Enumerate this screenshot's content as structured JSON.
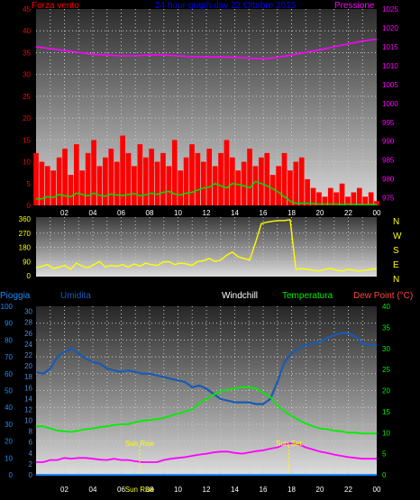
{
  "chart_data": [
    {
      "type": "line",
      "title": "24 hour graph day  22 Ottobre 2015",
      "left_label": "Forza vento",
      "right_label": "Pressione",
      "left_ticks": [
        "45",
        "40",
        "35",
        "30",
        "25",
        "20",
        "15",
        "10",
        "5",
        "0"
      ],
      "right_ticks": [
        "1025",
        "1020",
        "1015",
        "1010",
        "1005",
        "1000",
        "995",
        "990",
        "985",
        "980",
        "975"
      ],
      "x_ticks": [
        "02",
        "04",
        "06",
        "08",
        "10",
        "12",
        "14",
        "16",
        "18",
        "20",
        "22",
        "00"
      ],
      "ylim_left": [
        0,
        45
      ],
      "ylim_right": [
        973,
        1025
      ],
      "grid": true,
      "colors": {
        "wind": "#ff0000",
        "gust": "#00dd00",
        "pressure": "#ff00ff"
      },
      "series": [
        {
          "values": [
            12,
            10,
            9,
            8,
            11,
            13,
            7,
            14,
            8,
            12,
            15,
            9,
            11,
            13,
            10,
            16,
            12,
            9,
            14,
            11,
            13,
            10,
            12,
            9,
            15,
            8,
            11,
            14,
            12,
            10,
            13,
            9,
            12,
            15,
            11,
            8,
            10,
            13,
            9,
            11,
            12,
            7,
            9,
            12,
            8,
            10,
            11,
            6,
            4,
            3,
            2,
            4,
            3,
            5,
            2,
            3,
            4,
            2,
            3,
            1
          ]
        },
        {
          "values": [
            1.5,
            1.5,
            2,
            1.8,
            2.5,
            2.2,
            2,
            2.8,
            2.5,
            2.2,
            2.8,
            2.3,
            2.1,
            2.6,
            2.4,
            2.3,
            2.5,
            2.7,
            2.2,
            2.4,
            2.8,
            2.5,
            3,
            3.2,
            2.6,
            2.4,
            2.8,
            3,
            3.5,
            4,
            4.2,
            5,
            4.5,
            4,
            5,
            4.8,
            4.5,
            4,
            5.5,
            5,
            4.5,
            3.8,
            3,
            2,
            1,
            0.5,
            0.5,
            0.5,
            0.4,
            0.3,
            0.3,
            0.3,
            0.3,
            0.2,
            0.3,
            0.2,
            0.2,
            0.2,
            0.2,
            0.2
          ]
        },
        {
          "x": [
            0,
            1,
            2,
            3,
            4,
            5,
            6,
            7,
            8,
            9,
            10,
            11,
            12,
            13,
            14,
            15,
            16,
            17,
            18,
            19,
            20,
            21,
            22,
            23,
            24
          ],
          "values": [
            1015,
            1014.5,
            1014,
            1013.5,
            1013,
            1012.8,
            1012.6,
            1012.6,
            1012.8,
            1012.8,
            1012.6,
            1012.4,
            1012.3,
            1012.3,
            1012.2,
            1012,
            1011.8,
            1012.2,
            1012.8,
            1013.5,
            1014.2,
            1015,
            1015.8,
            1016.5,
            1017
          ]
        }
      ]
    },
    {
      "type": "line",
      "right_label": "N W S E N",
      "left_ticks": [
        "360",
        "270",
        "180",
        "90",
        "0"
      ],
      "ylim": [
        0,
        360
      ],
      "colors": {
        "direction": "#ffff00"
      },
      "series": [
        {
          "values": [
            50,
            60,
            70,
            45,
            55,
            65,
            40,
            80,
            60,
            50,
            70,
            90,
            55,
            65,
            60,
            70,
            55,
            75,
            60,
            80,
            70,
            65,
            85,
            90,
            70,
            80,
            75,
            65,
            90,
            95,
            110,
            90,
            100,
            130,
            150,
            120,
            110,
            100,
            210,
            330,
            340,
            345,
            350,
            350,
            355,
            40,
            45,
            40,
            35,
            30,
            40,
            45,
            35,
            30,
            40,
            35,
            30,
            35,
            40,
            45
          ]
        }
      ]
    },
    {
      "type": "line",
      "labels": [
        "Pioggia",
        "Umidita",
        "Windchill",
        "Temperatura",
        "Dew Point (°C)"
      ],
      "left_ticks": [
        "100",
        "90",
        "80",
        "70",
        "60",
        "50",
        "40",
        "30",
        "20",
        "10",
        "0"
      ],
      "mid_ticks": [
        "30",
        "28",
        "26",
        "24",
        "22",
        "20",
        "18",
        "16",
        "14",
        "12",
        "10",
        "8",
        "6",
        "4",
        "2",
        "0"
      ],
      "right_ticks": [
        "40",
        "35",
        "30",
        "25",
        "20",
        "15",
        "10",
        "5",
        "0"
      ],
      "x_ticks": [
        "02",
        "04",
        "06",
        "08",
        "10",
        "12",
        "14",
        "16",
        "18",
        "20",
        "22",
        "00"
      ],
      "ylim_left": [
        0,
        100
      ],
      "ylim_right": [
        0,
        40
      ],
      "grid": true,
      "colors": {
        "humidity": "#1a5ab4",
        "temperature": "#00ee00",
        "dewpoint": "#ff00ff",
        "rain": "#1a8cff"
      },
      "annotations": [
        {
          "label": "Sun Rise",
          "x": 7.3
        },
        {
          "label": "Sun Set",
          "x": 17.8
        },
        {
          "label": "Sun Rise",
          "x": 7.3
        }
      ],
      "series": [
        {
          "x": [
            0,
            0.5,
            1,
            1.5,
            2,
            2.5,
            3,
            3.5,
            4,
            4.5,
            5,
            5.5,
            6,
            6.5,
            7,
            7.5,
            8,
            8.5,
            9,
            9.5,
            10,
            10.5,
            11,
            11.5,
            12,
            12.5,
            13,
            13.5,
            14,
            14.5,
            15,
            15.5,
            16,
            16.5,
            17,
            17.5,
            18,
            18.5,
            19,
            19.5,
            20,
            20.5,
            21,
            21.5,
            22,
            22.5,
            23,
            23.5,
            24
          ],
          "values": [
            61,
            60,
            63,
            70,
            73,
            75,
            72,
            69,
            67,
            66,
            63,
            62,
            61,
            62,
            61,
            60,
            60,
            59,
            58,
            57,
            56,
            55,
            52,
            53,
            51,
            48,
            45,
            44,
            43,
            43,
            43,
            42,
            42,
            45,
            55,
            67,
            72,
            75,
            77,
            78,
            79,
            81,
            83,
            84,
            84,
            82,
            78,
            77,
            77
          ]
        },
        {
          "x": [
            0,
            0.5,
            1,
            1.5,
            2,
            2.5,
            3,
            3.5,
            4,
            4.5,
            5,
            5.5,
            6,
            6.5,
            7,
            7.5,
            8,
            8.5,
            9,
            9.5,
            10,
            10.5,
            11,
            11.5,
            12,
            12.5,
            13,
            13.5,
            14,
            14.5,
            15,
            15.5,
            16,
            16.5,
            17,
            17.5,
            18,
            18.5,
            19,
            19.5,
            20,
            20.5,
            21,
            21.5,
            22,
            22.5,
            23,
            23.5,
            24
          ],
          "values": [
            11.5,
            11.5,
            11,
            10.5,
            10.3,
            10.2,
            10.5,
            10.8,
            11,
            11.3,
            11.5,
            11.8,
            12,
            12,
            12.5,
            12.8,
            13,
            13.2,
            13.5,
            14,
            14.5,
            15,
            15.5,
            17,
            18,
            19,
            19.8,
            20.2,
            20.5,
            20.8,
            20.8,
            20.5,
            19.5,
            18.5,
            16.5,
            15,
            14,
            13,
            12.2,
            11.5,
            11,
            10.8,
            10.5,
            10.3,
            10,
            10,
            9.8,
            9.8,
            9.8
          ]
        },
        {
          "x": [
            0,
            0.5,
            1,
            1.5,
            2,
            2.5,
            3,
            3.5,
            4,
            4.5,
            5,
            5.5,
            6,
            6.5,
            7,
            7.5,
            8,
            8.5,
            9,
            9.5,
            10,
            10.5,
            11,
            11.5,
            12,
            12.5,
            13,
            13.5,
            14,
            14.5,
            15,
            15.5,
            16,
            16.5,
            17,
            17.5,
            18,
            18.5,
            19,
            19.5,
            20,
            20.5,
            21,
            21.5,
            22,
            22.5,
            23,
            23.5,
            24
          ],
          "values": [
            3,
            3,
            3.5,
            3.5,
            4,
            3.8,
            4,
            4,
            3.8,
            3.6,
            3.5,
            3.8,
            3.5,
            3.5,
            3.2,
            3,
            3,
            3,
            3.5,
            3.8,
            4,
            4.2,
            4.5,
            4.8,
            5,
            5.3,
            5.5,
            5.5,
            5.2,
            5,
            5.3,
            5.6,
            5.8,
            6.2,
            6.5,
            7.2,
            7.5,
            7.2,
            6.5,
            6,
            5.5,
            5.2,
            4.8,
            4.5,
            4.2,
            4,
            3.8,
            3.8,
            3.8
          ]
        },
        {
          "x": [
            0,
            24
          ],
          "values": [
            0,
            0
          ]
        }
      ]
    }
  ]
}
